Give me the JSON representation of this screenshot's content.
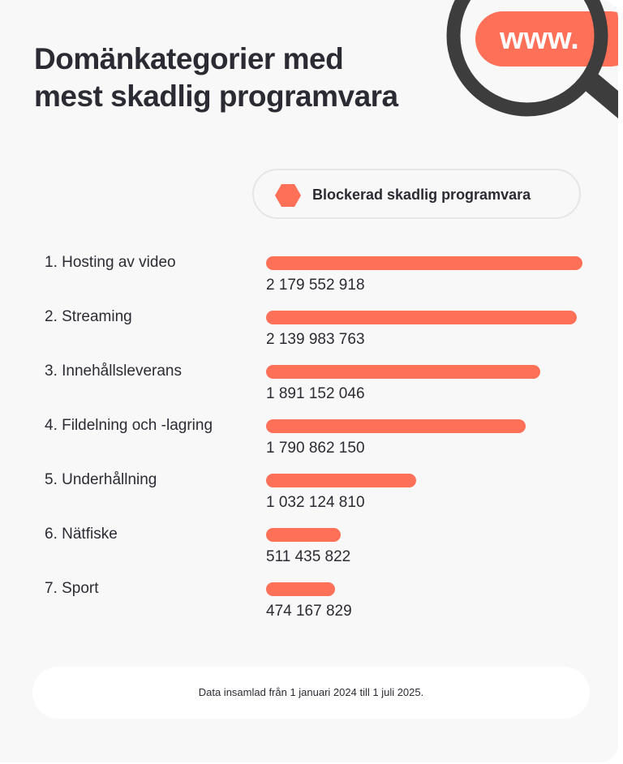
{
  "title_line1": "Domänkategorier med",
  "title_line2": "mest skadlig programvara",
  "illustration": {
    "text": "www.",
    "icon": "magnifier-icon"
  },
  "colors": {
    "bar": "#ff7058",
    "text": "#2b2b33",
    "magnifier": "#3d3d3d",
    "background": "#f8f8f8"
  },
  "chart_data": {
    "type": "bar",
    "orientation": "horizontal",
    "legend": {
      "entries": [
        "Blockerad skadlig programvara"
      ],
      "placement": "top"
    },
    "categories": [
      "1. Hosting av video",
      "2. Streaming",
      "3. Innehållsleverans",
      "4. Fildelning och -lagring",
      "5. Underhållning",
      "6. Nätfiske",
      "7. Sport"
    ],
    "values": [
      2179552918,
      2139983763,
      1891152046,
      1790862150,
      1032124810,
      511435822,
      474167829
    ],
    "value_labels": [
      "2 179 552 918",
      "2 139 983 763",
      "1 891 152 046",
      "1 790 862 150",
      "1 032 124 810",
      "511 435 822",
      "474 167 829"
    ],
    "grid": false
  },
  "footer": "Data insamlad från 1 januari 2024 till 1 juli 2025."
}
